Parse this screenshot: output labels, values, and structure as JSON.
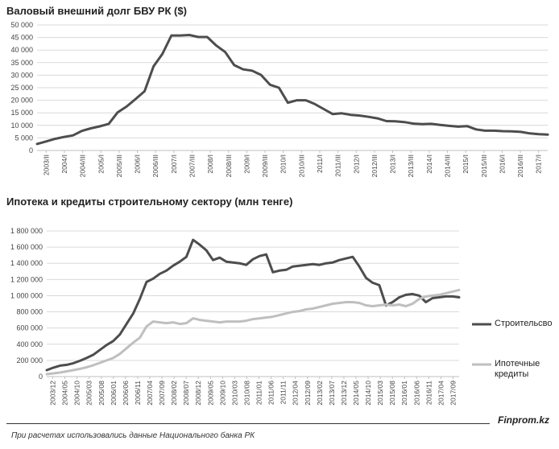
{
  "chart_data": [
    {
      "type": "line",
      "title": "Валовый внешний долг БВУ РК ($)",
      "ylim": [
        0,
        50000
      ],
      "y_ticks": [
        "0",
        "5 000",
        "10 000",
        "15 000",
        "20 000",
        "25 000",
        "30 000",
        "35 000",
        "40 000",
        "45 000",
        "50 000"
      ],
      "x_labels": [
        "2003/II",
        "2004/I",
        "2004/III",
        "2005/I",
        "2005/III",
        "2006/I",
        "2006/III",
        "2007/I",
        "2007/III",
        "2008/I",
        "2008/III",
        "2009/I",
        "2009/III",
        "2010/I",
        "2010/III",
        "2011/I",
        "2011/III",
        "2012/I",
        "2012/III",
        "2013/I",
        "2013/III",
        "2014/I",
        "2014/III",
        "2015/I",
        "2015/III",
        "2016/I",
        "2016/III",
        "2017/I"
      ],
      "grid": true,
      "series": [
        {
          "color": "#4d4d4d",
          "values": [
            2600,
            3600,
            4600,
            5400,
            6000,
            7800,
            8800,
            9600,
            10600,
            15200,
            17500,
            20500,
            23600,
            33500,
            38500,
            45800,
            45800,
            46000,
            45200,
            45200,
            41800,
            39200,
            34000,
            32300,
            31800,
            30100,
            26200,
            25000,
            19000,
            20000,
            20000,
            18500,
            16500,
            14500,
            14800,
            14200,
            13900,
            13400,
            12800,
            11700,
            11600,
            11300,
            10700,
            10500,
            10600,
            10200,
            9800,
            9500,
            9700,
            8400,
            7900,
            7900,
            7700,
            7600,
            7400,
            6800,
            6500,
            6300
          ]
        }
      ]
    },
    {
      "type": "line",
      "title": "Ипотека и кредиты строительному  сектору (млн тенге)",
      "ylim": [
        0,
        1800000
      ],
      "y_ticks": [
        "0",
        "200 000",
        "400 000",
        "600 000",
        "800 000",
        "1 000 000",
        "1 200 000",
        "1 400 000",
        "1 600 000",
        "1 800 000"
      ],
      "x_labels": [
        "2003/12",
        "2004/05",
        "2004/10",
        "2005/03",
        "2005/08",
        "2006/01",
        "2006/06",
        "2006/11",
        "2007/04",
        "2007/09",
        "2008/02",
        "2008/07",
        "2008/12",
        "2009/05",
        "2009/10",
        "2010/03",
        "2010/08",
        "2011/01",
        "2011/06",
        "2011/11",
        "2012/04",
        "2012/09",
        "2013/02",
        "2013/07",
        "2013/12",
        "2014/05",
        "2014/10",
        "2015/03",
        "2015/08",
        "2016/01",
        "2016/06",
        "2016/11",
        "2017/04",
        "2017/09"
      ],
      "grid": true,
      "legend_position": "right",
      "series": [
        {
          "name": "Строительсво",
          "color": "#4d4d4d",
          "values": [
            80000,
            110000,
            135000,
            145000,
            165000,
            195000,
            230000,
            270000,
            330000,
            390000,
            440000,
            520000,
            650000,
            780000,
            960000,
            1170000,
            1210000,
            1270000,
            1310000,
            1370000,
            1420000,
            1480000,
            1690000,
            1630000,
            1560000,
            1440000,
            1470000,
            1420000,
            1410000,
            1400000,
            1380000,
            1450000,
            1490000,
            1510000,
            1290000,
            1310000,
            1320000,
            1360000,
            1370000,
            1380000,
            1390000,
            1380000,
            1400000,
            1410000,
            1440000,
            1460000,
            1480000,
            1360000,
            1220000,
            1160000,
            1130000,
            880000,
            920000,
            980000,
            1010000,
            1020000,
            1000000,
            920000,
            970000,
            980000,
            990000,
            990000,
            980000
          ]
        },
        {
          "name": "Ипотечные кредиты",
          "color": "#bfbfbf",
          "values": [
            30000,
            40000,
            50000,
            65000,
            80000,
            95000,
            115000,
            140000,
            170000,
            200000,
            230000,
            280000,
            350000,
            420000,
            480000,
            620000,
            680000,
            670000,
            660000,
            670000,
            650000,
            660000,
            720000,
            700000,
            690000,
            680000,
            670000,
            680000,
            680000,
            680000,
            690000,
            710000,
            720000,
            730000,
            740000,
            760000,
            780000,
            800000,
            810000,
            830000,
            840000,
            860000,
            880000,
            900000,
            910000,
            920000,
            920000,
            910000,
            880000,
            870000,
            880000,
            890000,
            880000,
            890000,
            870000,
            900000,
            960000,
            990000,
            1000000,
            1010000,
            1030000,
            1050000,
            1070000
          ]
        }
      ]
    }
  ],
  "footer": {
    "brand": "Finprom.kz",
    "note": "При расчетах использовались данные Национального  банка РК"
  }
}
